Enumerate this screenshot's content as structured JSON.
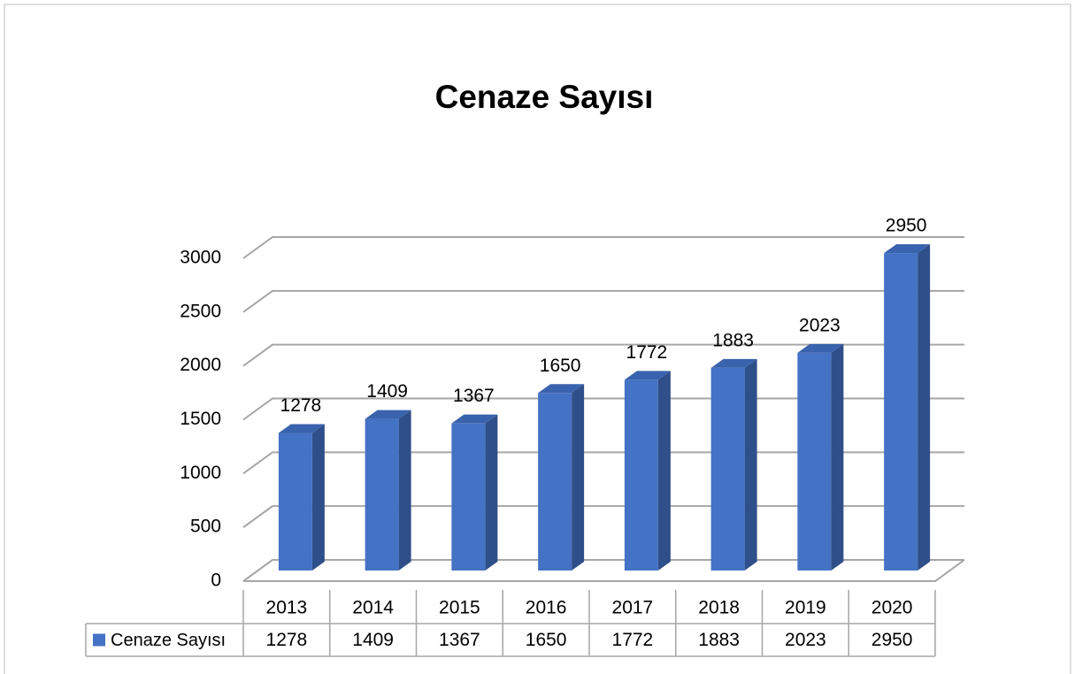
{
  "chart_data": {
    "type": "bar3d",
    "title": "Cenaze Sayısı",
    "categories": [
      "2013",
      "2014",
      "2015",
      "2016",
      "2017",
      "2018",
      "2019",
      "2020"
    ],
    "series": [
      {
        "name": "Cenaze Sayısı",
        "color": "#4472c4",
        "values": [
          1278,
          1409,
          1367,
          1650,
          1772,
          1883,
          2023,
          2950
        ]
      }
    ],
    "ylim": [
      0,
      3000
    ],
    "yticks": [
      0,
      500,
      1000,
      1500,
      2000,
      2500,
      3000
    ],
    "grid": true,
    "data_table": true
  }
}
